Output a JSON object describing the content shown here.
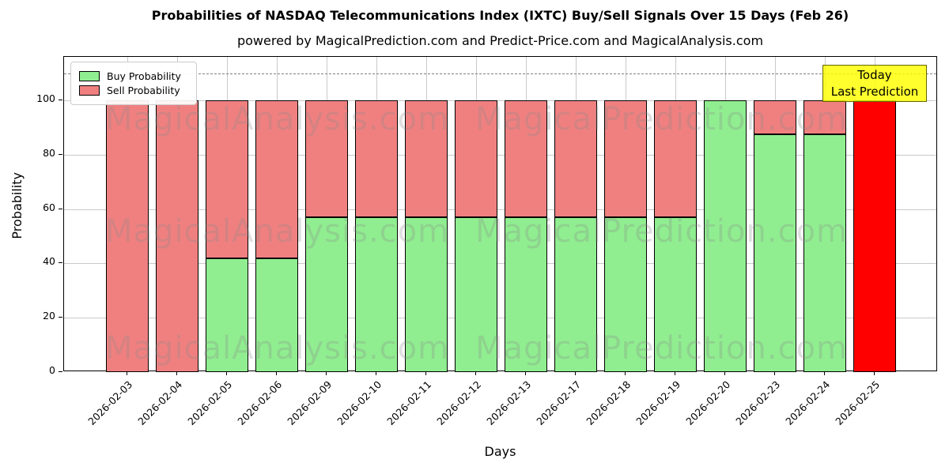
{
  "title": "Probabilities of NASDAQ Telecommunications Index (IXTC) Buy/Sell Signals Over 15 Days (Feb 26)",
  "subtitle": "powered by MagicalPrediction.com and Predict-Price.com and MagicalAnalysis.com",
  "axes": {
    "x_label": "Days",
    "y_label": "Probability",
    "y_ticks": [
      0,
      20,
      40,
      60,
      80,
      100
    ],
    "y_max": 116,
    "dashed_line_y": 110
  },
  "legend": {
    "buy_label": "Buy Probability",
    "sell_label": "Sell Probability"
  },
  "annotation": {
    "line1": "Today",
    "line2": "Last Prediction"
  },
  "watermarks": {
    "left_text": "MagicalAnalysis.com",
    "right_text": "MagicalPrediction.com",
    "rows": 3
  },
  "colors": {
    "buy": "#90ee90",
    "sell": "#f08080",
    "today_bar": "#ff0000",
    "annotation_bg": "#ffff00",
    "annotation_border": "#666600",
    "grid": "#c9c9c9",
    "dashed_line": "#7f7f7f",
    "bar_edge": "#000000"
  },
  "chart_data": {
    "type": "bar",
    "stacked": true,
    "title": "Probabilities of NASDAQ Telecommunications Index (IXTC) Buy/Sell Signals Over 15 Days (Feb 26)",
    "xlabel": "Days",
    "ylabel": "Probability",
    "ylim": [
      0,
      116
    ],
    "grid": true,
    "legend_position": "upper left",
    "hline_dashed": 110,
    "categories": [
      "2026-02-03",
      "2026-02-04",
      "2026-02-05",
      "2026-02-06",
      "2026-02-09",
      "2026-02-10",
      "2026-02-11",
      "2026-02-12",
      "2026-02-13",
      "2026-02-17",
      "2026-02-18",
      "2026-02-19",
      "2026-02-20",
      "2026-02-23",
      "2026-02-24",
      "2026-02-25"
    ],
    "series": [
      {
        "name": "Buy Probability",
        "color": "#90ee90",
        "values": [
          0,
          0,
          42,
          42,
          57,
          57,
          57,
          57,
          57,
          57,
          57,
          57,
          100,
          87.5,
          87.5,
          0
        ]
      },
      {
        "name": "Sell Probability",
        "color": "#f08080",
        "values": [
          100,
          100,
          58,
          58,
          43,
          43,
          43,
          43,
          43,
          43,
          43,
          43,
          0,
          12.5,
          12.5,
          100
        ]
      }
    ],
    "today_bar": {
      "category": "2026-02-25",
      "index": 15,
      "total": 100,
      "color": "#ff0000"
    }
  }
}
